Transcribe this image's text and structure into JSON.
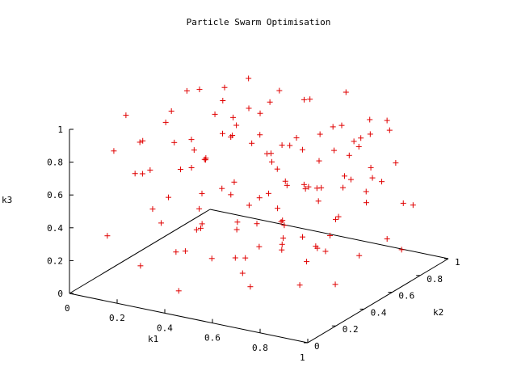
{
  "chart_data": {
    "type": "scatter",
    "title": "Particle Swarm Optimisation",
    "xlabel": "k1",
    "ylabel": "k2",
    "zlabel": "k3",
    "xlim": [
      0,
      1
    ],
    "ylim": [
      0,
      1
    ],
    "zlim": [
      0,
      1
    ],
    "x_ticks": [
      "0",
      "0.2",
      "0.4",
      "0.6",
      "0.8",
      "1"
    ],
    "y_ticks": [
      "0",
      "0.2",
      "0.4",
      "0.6",
      "0.8",
      "1"
    ],
    "z_ticks": [
      "0",
      "0.2",
      "0.4",
      "0.6",
      "0.8",
      "1"
    ],
    "marker": "+",
    "marker_color": "#e00000",
    "grid": false,
    "points": [
      [
        0.04,
        0.8,
        0.54
      ],
      [
        0.05,
        0.6,
        0.75
      ],
      [
        0.08,
        0.7,
        0.9
      ],
      [
        0.1,
        0.35,
        0.58
      ],
      [
        0.12,
        0.9,
        0.83
      ],
      [
        0.15,
        0.45,
        0.4
      ],
      [
        0.18,
        0.2,
        0.12
      ],
      [
        0.2,
        0.75,
        0.65
      ],
      [
        0.22,
        0.55,
        0.3
      ],
      [
        0.25,
        0.85,
        0.95
      ],
      [
        0.27,
        0.3,
        0.18
      ],
      [
        0.3,
        0.65,
        0.72
      ],
      [
        0.32,
        0.4,
        0.5
      ],
      [
        0.35,
        0.9,
        0.88
      ],
      [
        0.37,
        0.15,
        0.05
      ],
      [
        0.4,
        0.6,
        0.35
      ],
      [
        0.42,
        0.8,
        0.62
      ],
      [
        0.45,
        0.25,
        0.22
      ],
      [
        0.47,
        0.5,
        0.8
      ],
      [
        0.5,
        0.7,
        0.45
      ],
      [
        0.52,
        0.35,
        0.1
      ],
      [
        0.55,
        0.85,
        0.7
      ],
      [
        0.57,
        0.45,
        0.55
      ],
      [
        0.6,
        0.95,
        0.92
      ],
      [
        0.62,
        0.2,
        0.3
      ],
      [
        0.65,
        0.65,
        0.15
      ],
      [
        0.67,
        0.4,
        0.68
      ],
      [
        0.7,
        0.75,
        0.85
      ],
      [
        0.72,
        0.3,
        0.4
      ],
      [
        0.75,
        0.55,
        0.2
      ],
      [
        0.77,
        0.85,
        0.5
      ],
      [
        0.8,
        0.15,
        0.6
      ],
      [
        0.82,
        0.6,
        0.78
      ],
      [
        0.85,
        0.45,
        0.08
      ],
      [
        0.87,
        0.9,
        0.35
      ],
      [
        0.9,
        0.25,
        0.95
      ],
      [
        0.92,
        0.7,
        0.25
      ],
      [
        0.95,
        0.5,
        0.65
      ],
      [
        0.97,
        0.8,
        0.42
      ],
      [
        0.1,
        0.1,
        0.33
      ],
      [
        0.14,
        0.95,
        0.58
      ],
      [
        0.18,
        0.62,
        0.98
      ],
      [
        0.24,
        0.48,
        0.7
      ],
      [
        0.28,
        0.72,
        0.15
      ],
      [
        0.33,
        0.88,
        0.45
      ],
      [
        0.38,
        0.52,
        0.92
      ],
      [
        0.43,
        0.95,
        0.28
      ],
      [
        0.48,
        0.12,
        0.48
      ],
      [
        0.53,
        0.58,
        0.62
      ],
      [
        0.58,
        0.78,
        0.05
      ],
      [
        0.63,
        0.08,
        0.75
      ],
      [
        0.68,
        0.92,
        0.68
      ],
      [
        0.73,
        0.42,
        0.88
      ],
      [
        0.78,
        0.68,
        0.58
      ],
      [
        0.83,
        0.28,
        0.3
      ],
      [
        0.88,
        0.62,
        0.5
      ],
      [
        0.93,
        0.38,
        0.8
      ],
      [
        0.06,
        0.3,
        0.95
      ],
      [
        0.09,
        0.5,
        0.2
      ],
      [
        0.13,
        0.75,
        0.48
      ],
      [
        0.16,
        0.25,
        0.85
      ],
      [
        0.19,
        0.85,
        0.3
      ],
      [
        0.23,
        0.4,
        0.62
      ],
      [
        0.26,
        0.65,
        0.92
      ],
      [
        0.29,
        0.1,
        0.55
      ],
      [
        0.34,
        0.78,
        0.8
      ],
      [
        0.36,
        0.58,
        0.2
      ],
      [
        0.39,
        0.3,
        0.78
      ],
      [
        0.41,
        0.92,
        0.6
      ],
      [
        0.44,
        0.68,
        0.95
      ],
      [
        0.46,
        0.4,
        0.15
      ],
      [
        0.49,
        0.88,
        0.88
      ],
      [
        0.51,
        0.22,
        0.68
      ],
      [
        0.54,
        0.6,
        0.3
      ],
      [
        0.56,
        0.72,
        0.98
      ],
      [
        0.59,
        0.48,
        0.45
      ],
      [
        0.61,
        0.88,
        0.2
      ],
      [
        0.64,
        0.32,
        0.88
      ],
      [
        0.66,
        0.55,
        0.58
      ],
      [
        0.69,
        0.18,
        0.4
      ],
      [
        0.71,
        0.82,
        0.72
      ],
      [
        0.74,
        0.62,
        0.92
      ],
      [
        0.76,
        0.35,
        0.1
      ],
      [
        0.79,
        0.92,
        0.82
      ],
      [
        0.81,
        0.48,
        0.35
      ],
      [
        0.84,
        0.72,
        0.65
      ],
      [
        0.86,
        0.2,
        0.5
      ],
      [
        0.89,
        0.55,
        0.88
      ],
      [
        0.91,
        0.82,
        0.12
      ],
      [
        0.94,
        0.3,
        0.58
      ],
      [
        0.96,
        0.65,
        0.95
      ],
      [
        0.98,
        0.4,
        0.32
      ],
      [
        0.03,
        0.45,
        0.7
      ],
      [
        0.07,
        0.85,
        0.4
      ],
      [
        0.11,
        0.28,
        0.62
      ],
      [
        0.17,
        0.58,
        0.52
      ],
      [
        0.21,
        0.92,
        0.72
      ],
      [
        0.31,
        0.22,
        0.9
      ],
      [
        0.4,
        0.85,
        0.1
      ],
      [
        0.5,
        0.3,
        0.95
      ],
      [
        0.6,
        0.55,
        0.8
      ],
      [
        0.7,
        0.1,
        0.2
      ],
      [
        0.8,
        0.78,
        0.9
      ],
      [
        0.9,
        0.42,
        0.7
      ],
      [
        0.35,
        0.35,
        0.35
      ],
      [
        0.55,
        0.95,
        0.55
      ],
      [
        0.65,
        0.25,
        0.65
      ],
      [
        0.75,
        0.95,
        0.42
      ],
      [
        0.85,
        0.35,
        0.72
      ],
      [
        0.45,
        0.75,
        0.05
      ],
      [
        0.25,
        0.15,
        0.75
      ],
      [
        0.15,
        0.65,
        0.1
      ],
      [
        0.05,
        0.95,
        0.62
      ],
      [
        0.95,
        0.15,
        0.85
      ],
      [
        0.85,
        0.88,
        0.6
      ],
      [
        0.58,
        0.35,
        0.42
      ],
      [
        0.48,
        0.62,
        0.68
      ],
      [
        0.38,
        0.18,
        0.28
      ],
      [
        0.28,
        0.88,
        0.6
      ],
      [
        0.18,
        0.42,
        0.95
      ],
      [
        0.08,
        0.18,
        0.8
      ],
      [
        0.62,
        0.72,
        0.38
      ],
      [
        0.72,
        0.48,
        0.62
      ],
      [
        0.82,
        0.12,
        0.45
      ],
      [
        0.92,
        0.58,
        0.95
      ]
    ]
  }
}
